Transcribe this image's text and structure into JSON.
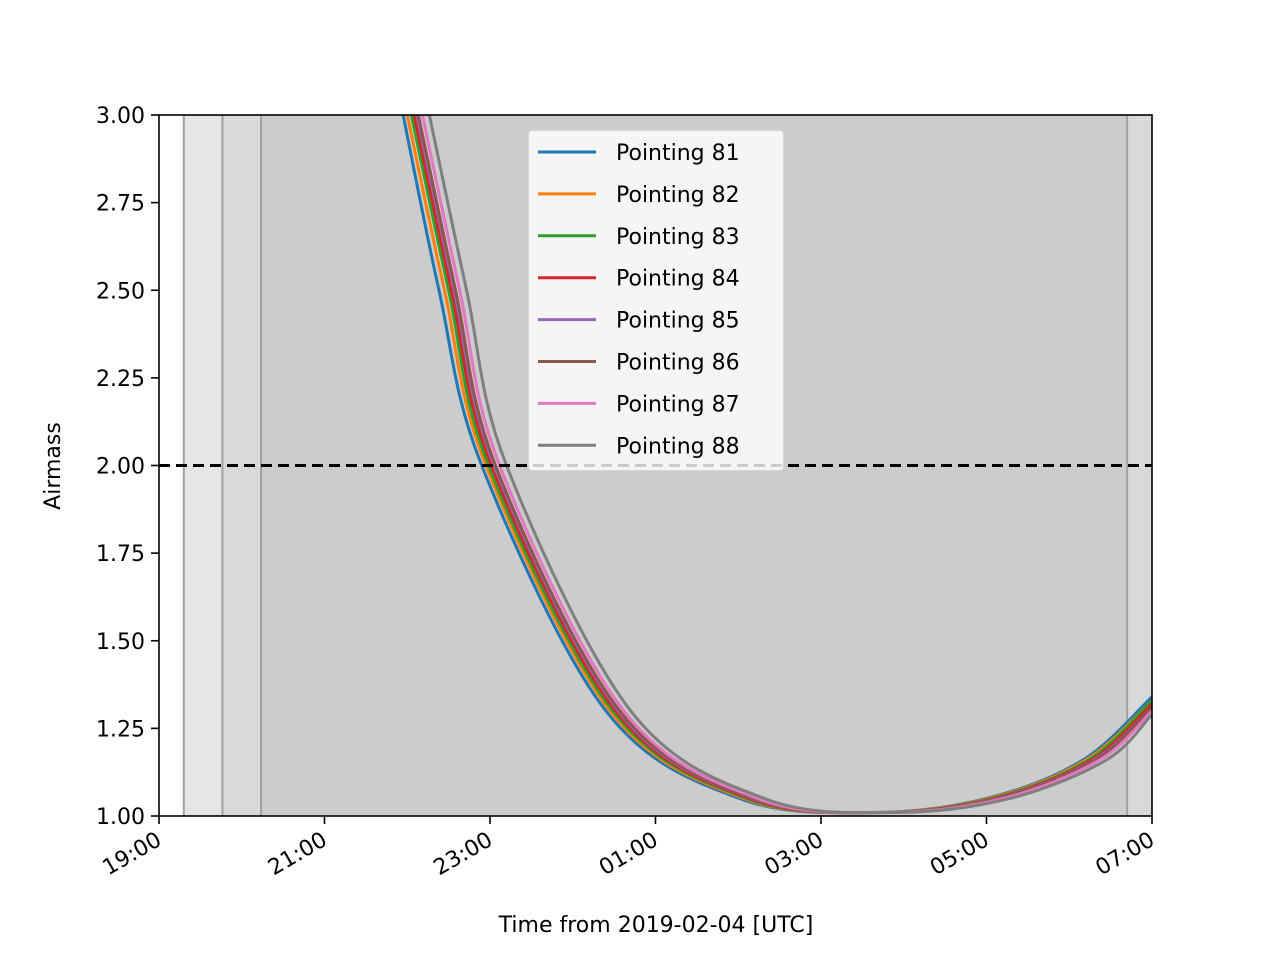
{
  "chart_data": {
    "type": "line",
    "title": "",
    "xlabel": "Time from 2019-02-04 [UTC]",
    "ylabel": "Airmass",
    "xlim": [
      "2019-02-04 19:00",
      "2019-02-05 07:00"
    ],
    "ylim": [
      1.0,
      3.0
    ],
    "xticks": [
      "19:00",
      "21:00",
      "23:00",
      "01:00",
      "03:00",
      "05:00",
      "07:00"
    ],
    "yticks": [
      "1.00",
      "1.25",
      "1.50",
      "1.75",
      "2.00",
      "2.25",
      "2.50",
      "2.75",
      "3.00"
    ],
    "grid": false,
    "legend_position": "upper-center",
    "reference_line": {
      "y": 2.0,
      "style": "dashed",
      "color": "#000000"
    },
    "twilight_bands": [
      {
        "start": "2019-02-04 19:18",
        "end": "2019-02-05 07:00",
        "color": "#e5e5e5"
      },
      {
        "start": "2019-02-04 19:46",
        "end": "2019-02-05 07:00",
        "color": "#d9d9d9"
      },
      {
        "start": "2019-02-04 20:14",
        "end": "2019-02-05 06:42",
        "color": "#cccccc"
      }
    ],
    "series": [
      {
        "name": "Pointing 81",
        "color": "#1f77b4",
        "x": [
          "2019-02-04 21:57",
          "2019-02-04 22:23",
          "2019-02-04 22:54",
          "2019-02-05 00:24",
          "2019-02-05 02:01",
          "2019-02-05 03:37",
          "2019-02-05 05:00",
          "2019-02-05 06:10",
          "2019-02-05 07:00"
        ],
        "values": [
          3.0,
          2.5,
          2.0,
          1.3,
          1.05,
          1.01,
          1.05,
          1.16,
          1.34
        ]
      },
      {
        "name": "Pointing 82",
        "color": "#ff7f0e",
        "x": [
          "2019-02-04 22:00",
          "2019-02-04 22:27",
          "2019-02-04 22:57",
          "2019-02-05 00:27",
          "2019-02-05 02:04",
          "2019-02-05 03:39",
          "2019-02-05 05:02",
          "2019-02-05 06:12",
          "2019-02-05 07:00"
        ],
        "values": [
          3.0,
          2.5,
          2.0,
          1.3,
          1.05,
          1.01,
          1.05,
          1.16,
          1.33
        ]
      },
      {
        "name": "Pointing 83",
        "color": "#2ca02c",
        "x": [
          "2019-02-04 22:03",
          "2019-02-04 22:30",
          "2019-02-04 22:59",
          "2019-02-05 00:29",
          "2019-02-05 02:06",
          "2019-02-05 03:41",
          "2019-02-05 05:04",
          "2019-02-05 06:14",
          "2019-02-05 07:00"
        ],
        "values": [
          3.0,
          2.5,
          2.0,
          1.3,
          1.05,
          1.01,
          1.05,
          1.16,
          1.33
        ]
      },
      {
        "name": "Pointing 84",
        "color": "#d62728",
        "x": [
          "2019-02-04 22:05",
          "2019-02-04 22:32",
          "2019-02-04 23:01",
          "2019-02-05 00:31",
          "2019-02-05 02:08",
          "2019-02-05 03:43",
          "2019-02-05 05:06",
          "2019-02-05 06:16",
          "2019-02-05 07:00"
        ],
        "values": [
          3.0,
          2.5,
          2.0,
          1.3,
          1.05,
          1.01,
          1.05,
          1.16,
          1.32
        ]
      },
      {
        "name": "Pointing 85",
        "color": "#9467bd",
        "x": [
          "2019-02-04 22:07",
          "2019-02-04 22:34",
          "2019-02-04 23:03",
          "2019-02-05 00:33",
          "2019-02-05 02:10",
          "2019-02-05 03:45",
          "2019-02-05 05:08",
          "2019-02-05 06:18",
          "2019-02-05 07:00"
        ],
        "values": [
          3.0,
          2.5,
          2.0,
          1.3,
          1.05,
          1.01,
          1.05,
          1.16,
          1.31
        ]
      },
      {
        "name": "Pointing 86",
        "color": "#8c564b",
        "x": [
          "2019-02-04 22:08",
          "2019-02-04 22:35",
          "2019-02-04 23:04",
          "2019-02-05 00:34",
          "2019-02-05 02:11",
          "2019-02-05 03:46",
          "2019-02-05 05:09",
          "2019-02-05 06:19",
          "2019-02-05 07:00"
        ],
        "values": [
          3.0,
          2.5,
          2.0,
          1.3,
          1.05,
          1.01,
          1.05,
          1.16,
          1.31
        ]
      },
      {
        "name": "Pointing 87",
        "color": "#e377c2",
        "x": [
          "2019-02-04 22:11",
          "2019-02-04 22:38",
          "2019-02-04 23:07",
          "2019-02-05 00:37",
          "2019-02-05 02:14",
          "2019-02-05 03:49",
          "2019-02-05 05:12",
          "2019-02-05 06:22",
          "2019-02-05 07:00"
        ],
        "values": [
          3.0,
          2.5,
          2.0,
          1.3,
          1.05,
          1.01,
          1.05,
          1.16,
          1.3
        ]
      },
      {
        "name": "Pointing 88",
        "color": "#7f7f7f",
        "x": [
          "2019-02-04 22:16",
          "2019-02-04 22:43",
          "2019-02-04 23:12",
          "2019-02-05 00:42",
          "2019-02-05 02:19",
          "2019-02-05 03:54",
          "2019-02-05 05:17",
          "2019-02-05 06:27",
          "2019-02-05 07:00"
        ],
        "values": [
          3.0,
          2.5,
          2.0,
          1.3,
          1.05,
          1.01,
          1.05,
          1.16,
          1.29
        ]
      }
    ]
  }
}
